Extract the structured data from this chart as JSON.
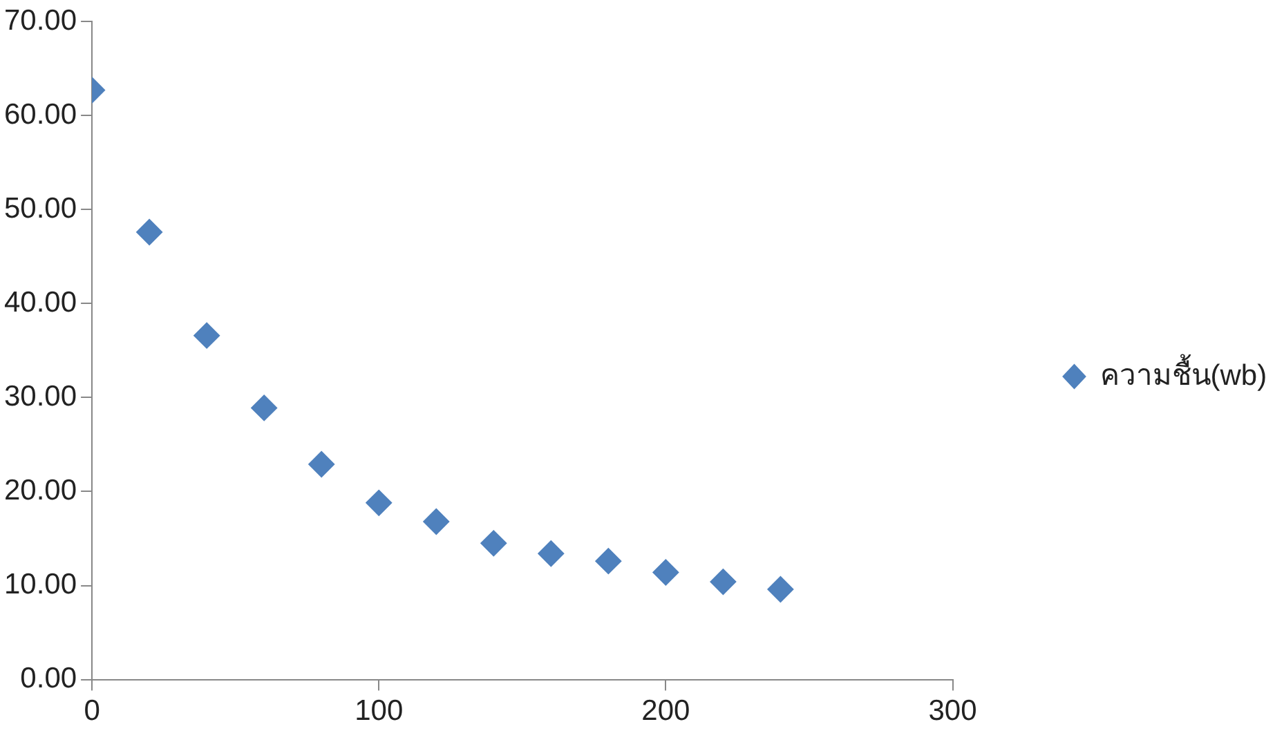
{
  "chart_data": {
    "type": "scatter",
    "x": [
      0,
      20,
      40,
      60,
      80,
      100,
      120,
      140,
      160,
      180,
      200,
      220,
      240
    ],
    "series": [
      {
        "name": "ความชื้น(wb)",
        "color": "#4f81bd",
        "values": [
          62.7,
          47.6,
          36.6,
          28.9,
          22.9,
          18.8,
          16.8,
          14.5,
          13.4,
          12.6,
          11.4,
          10.4,
          9.6
        ]
      }
    ],
    "xlim": [
      0,
      300
    ],
    "xticks": [
      0,
      100,
      200,
      300
    ],
    "ylim": [
      0,
      70
    ],
    "yticks": [
      {
        "value": 0,
        "label": "0.00"
      },
      {
        "value": 10,
        "label": "10.00"
      },
      {
        "value": 20,
        "label": "20.00"
      },
      {
        "value": 30,
        "label": "30.00"
      },
      {
        "value": 40,
        "label": "40.00"
      },
      {
        "value": 50,
        "label": "50.00"
      },
      {
        "value": 60,
        "label": "60.00"
      },
      {
        "value": 70,
        "label": "70.00"
      }
    ],
    "marker": "diamond",
    "legend": "right"
  }
}
